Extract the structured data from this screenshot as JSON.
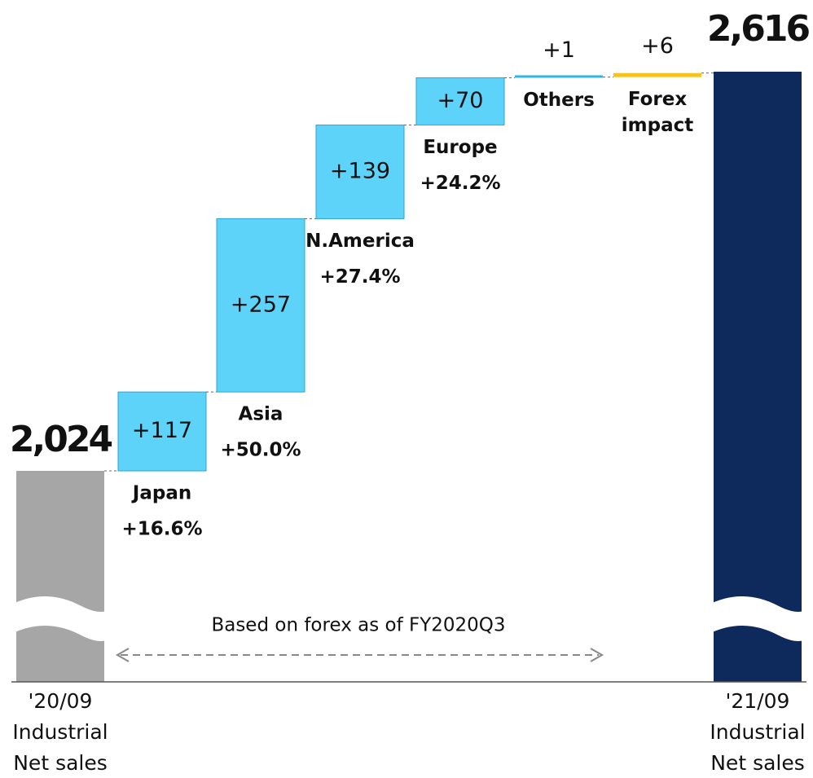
{
  "chart_data": {
    "type": "waterfall",
    "categories": [
      [
        "'20/09",
        "Industrial",
        "Net sales"
      ],
      [
        "Japan"
      ],
      [
        "Asia"
      ],
      [
        "N.America"
      ],
      [
        "Europe"
      ],
      [
        "Others"
      ],
      [
        "Forex",
        "impact"
      ],
      [
        "'21/09",
        "Industrial",
        "Net sales"
      ]
    ],
    "measure": [
      "total",
      "relative",
      "relative",
      "relative",
      "relative",
      "relative",
      "relative",
      "total"
    ],
    "values": [
      2024,
      117,
      257,
      139,
      70,
      1,
      6,
      2616
    ],
    "value_labels": [
      "2,024",
      "+117",
      "+257",
      "+139",
      "+70",
      "+1",
      "+6",
      "2,616"
    ],
    "growth_labels": [
      null,
      "+16.6%",
      "+50.0%",
      "+27.4%",
      "+24.2%",
      null,
      null,
      null
    ],
    "colors": [
      "#a6a6a6",
      "#5dd3fa",
      "#5dd3fa",
      "#5dd3fa",
      "#5dd3fa",
      "#2fb4e6",
      "#f7c21a",
      "#0e2a5c"
    ],
    "annotation": "Based on forex as of FY2020Q3"
  }
}
